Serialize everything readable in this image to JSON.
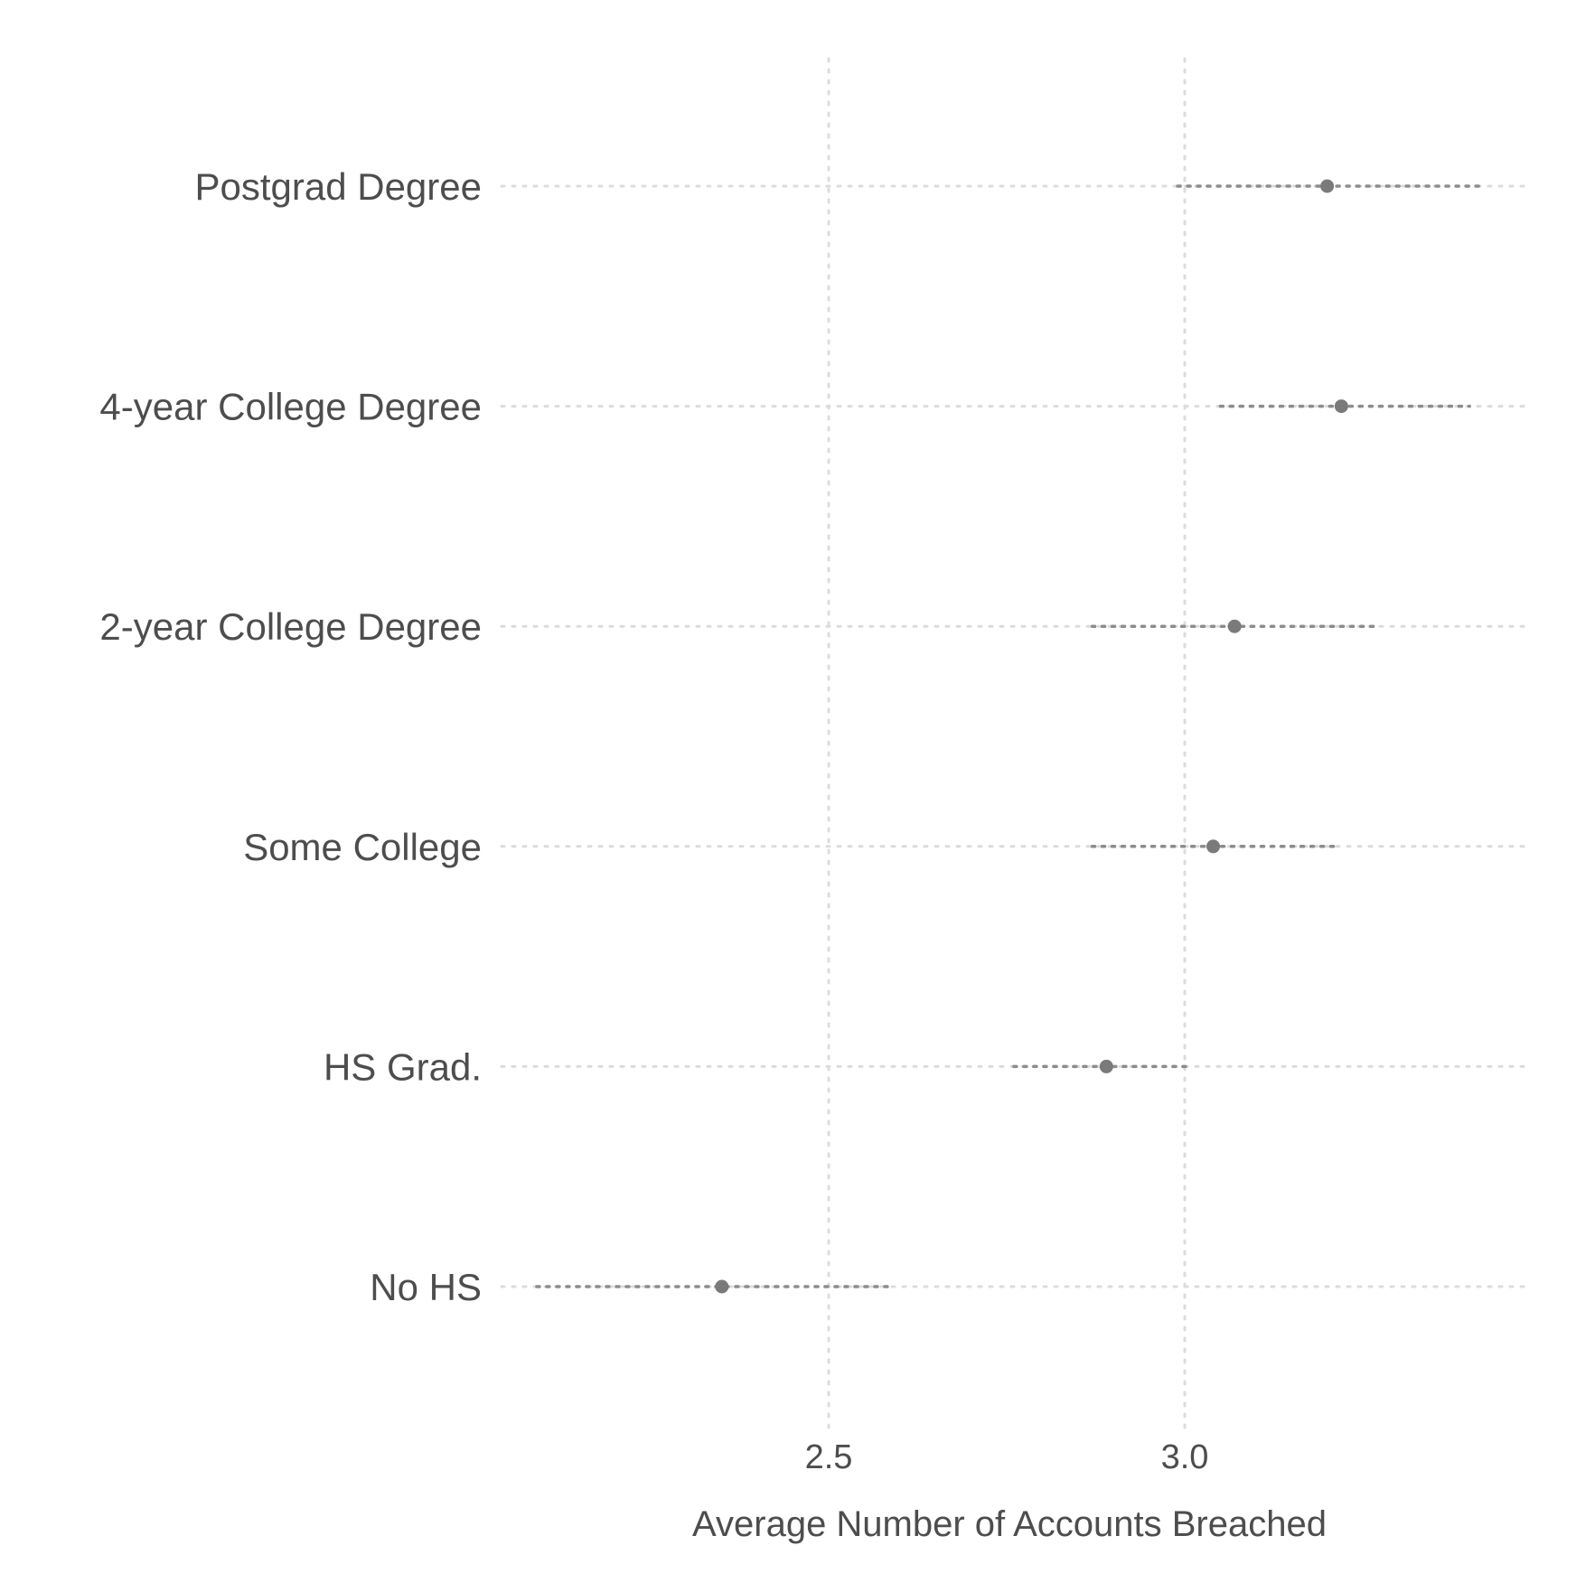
{
  "chart_data": {
    "type": "dot-plot",
    "title": "",
    "xlabel": "Average Number of Accounts Breached",
    "ylabel": "",
    "xlim": [
      2.05,
      3.48
    ],
    "x_ticks": [
      2.5,
      3.0
    ],
    "x_tick_labels": [
      "2.5",
      "3.0"
    ],
    "grid": true,
    "colors": {
      "point": "#7a7a7a",
      "interval": "#8c8c8c",
      "grid": "#dcdcdc",
      "text": "#4d4d4d"
    },
    "categories": [
      "Postgrad Degree",
      "4-year College Degree",
      "2-year College Degree",
      "Some College",
      "HS Grad.",
      "No HS"
    ],
    "values": [
      3.2,
      3.22,
      3.07,
      3.04,
      2.89,
      2.35
    ],
    "lower": [
      2.99,
      3.05,
      2.87,
      2.87,
      2.76,
      2.09
    ],
    "upper": [
      3.42,
      3.4,
      3.27,
      3.21,
      3.01,
      2.59
    ]
  }
}
